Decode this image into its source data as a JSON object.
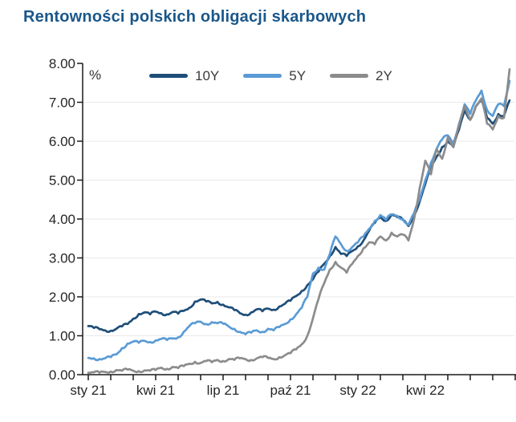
{
  "page": {
    "title": "Rentowności polskich obligacji skarbowych"
  },
  "colors": {
    "title": "#1A578A",
    "series_10y": "#1F4E79",
    "series_5y": "#5B9BD5",
    "series_2y": "#8C8C8C",
    "axis": "#1a1a1a",
    "tick_label": "#262626",
    "gridline": "#e9e9e9"
  },
  "chart_data": {
    "type": "line",
    "title": "Rentowności polskich obligacji skarbowych",
    "unit": "%",
    "xlabel": "",
    "ylabel": "%",
    "ylim": [
      0,
      8
    ],
    "grid": "horizontal",
    "legend_position": "top-center",
    "y_ticks": [
      "0.00",
      "1.00",
      "2.00",
      "3.00",
      "4.00",
      "5.00",
      "6.00",
      "7.00",
      "8.00"
    ],
    "x_tick_labels": [
      "sty 21",
      "kwi 21",
      "lip 21",
      "paź 21",
      "sty 22",
      "kwi 22"
    ],
    "x_minor_ticks_months": 20,
    "x_label_every_months": 3,
    "x_start_month": "sty 21",
    "x_end_month": "lip 22",
    "step_months": 0.25,
    "series": [
      {
        "name": "10Y",
        "color": "#1F4E79",
        "values": [
          1.25,
          1.2,
          1.17,
          1.14,
          1.13,
          1.18,
          1.24,
          1.3,
          1.44,
          1.56,
          1.6,
          1.55,
          1.62,
          1.58,
          1.55,
          1.61,
          1.57,
          1.64,
          1.72,
          1.88,
          1.93,
          1.88,
          1.83,
          1.87,
          1.8,
          1.73,
          1.66,
          1.58,
          1.54,
          1.6,
          1.68,
          1.63,
          1.7,
          1.67,
          1.75,
          1.82,
          1.9,
          2.02,
          2.15,
          2.3,
          2.45,
          2.65,
          2.85,
          3.05,
          3.28,
          3.1,
          3.05,
          3.18,
          3.3,
          3.45,
          3.7,
          3.9,
          4.05,
          3.95,
          4.12,
          4.05,
          3.98,
          3.82,
          4.1,
          4.45,
          4.9,
          5.3,
          5.6,
          5.85,
          6.0,
          5.85,
          6.3,
          6.8,
          6.55,
          6.9,
          7.05,
          6.6,
          6.45,
          6.7,
          6.65,
          7.05
        ]
      },
      {
        "name": "5Y",
        "color": "#5B9BD5",
        "values": [
          0.43,
          0.42,
          0.4,
          0.42,
          0.45,
          0.52,
          0.68,
          0.8,
          0.85,
          0.82,
          0.87,
          0.84,
          0.88,
          0.92,
          0.89,
          0.93,
          0.96,
          1.1,
          1.25,
          1.32,
          1.36,
          1.3,
          1.35,
          1.32,
          1.31,
          1.24,
          1.18,
          1.1,
          1.04,
          1.08,
          1.14,
          1.1,
          1.18,
          1.14,
          1.22,
          1.3,
          1.42,
          1.55,
          1.72,
          2.0,
          2.6,
          2.75,
          2.7,
          3.1,
          3.55,
          3.35,
          3.18,
          3.28,
          3.4,
          3.55,
          3.75,
          3.95,
          4.1,
          3.98,
          4.12,
          4.08,
          4.0,
          3.85,
          4.15,
          4.5,
          5.0,
          5.45,
          5.8,
          6.05,
          6.15,
          5.95,
          6.45,
          6.95,
          6.7,
          7.05,
          7.3,
          6.8,
          6.65,
          6.95,
          6.9,
          7.55
        ]
      },
      {
        "name": "2Y",
        "color": "#8C8C8C",
        "values": [
          0.05,
          0.06,
          0.05,
          0.07,
          0.08,
          0.12,
          0.1,
          0.13,
          0.1,
          0.09,
          0.11,
          0.1,
          0.12,
          0.18,
          0.15,
          0.2,
          0.17,
          0.22,
          0.28,
          0.33,
          0.3,
          0.35,
          0.32,
          0.38,
          0.35,
          0.4,
          0.38,
          0.42,
          0.4,
          0.38,
          0.42,
          0.45,
          0.43,
          0.4,
          0.45,
          0.5,
          0.55,
          0.65,
          0.78,
          1.0,
          1.45,
          1.95,
          2.35,
          2.7,
          2.9,
          2.75,
          2.62,
          2.85,
          3.05,
          3.25,
          3.4,
          3.35,
          3.55,
          3.45,
          3.65,
          3.55,
          3.6,
          3.45,
          4.0,
          4.8,
          5.5,
          5.15,
          5.8,
          5.55,
          6.1,
          5.85,
          6.4,
          6.9,
          6.55,
          6.9,
          7.1,
          6.45,
          6.3,
          6.65,
          6.6,
          7.85
        ]
      }
    ]
  }
}
